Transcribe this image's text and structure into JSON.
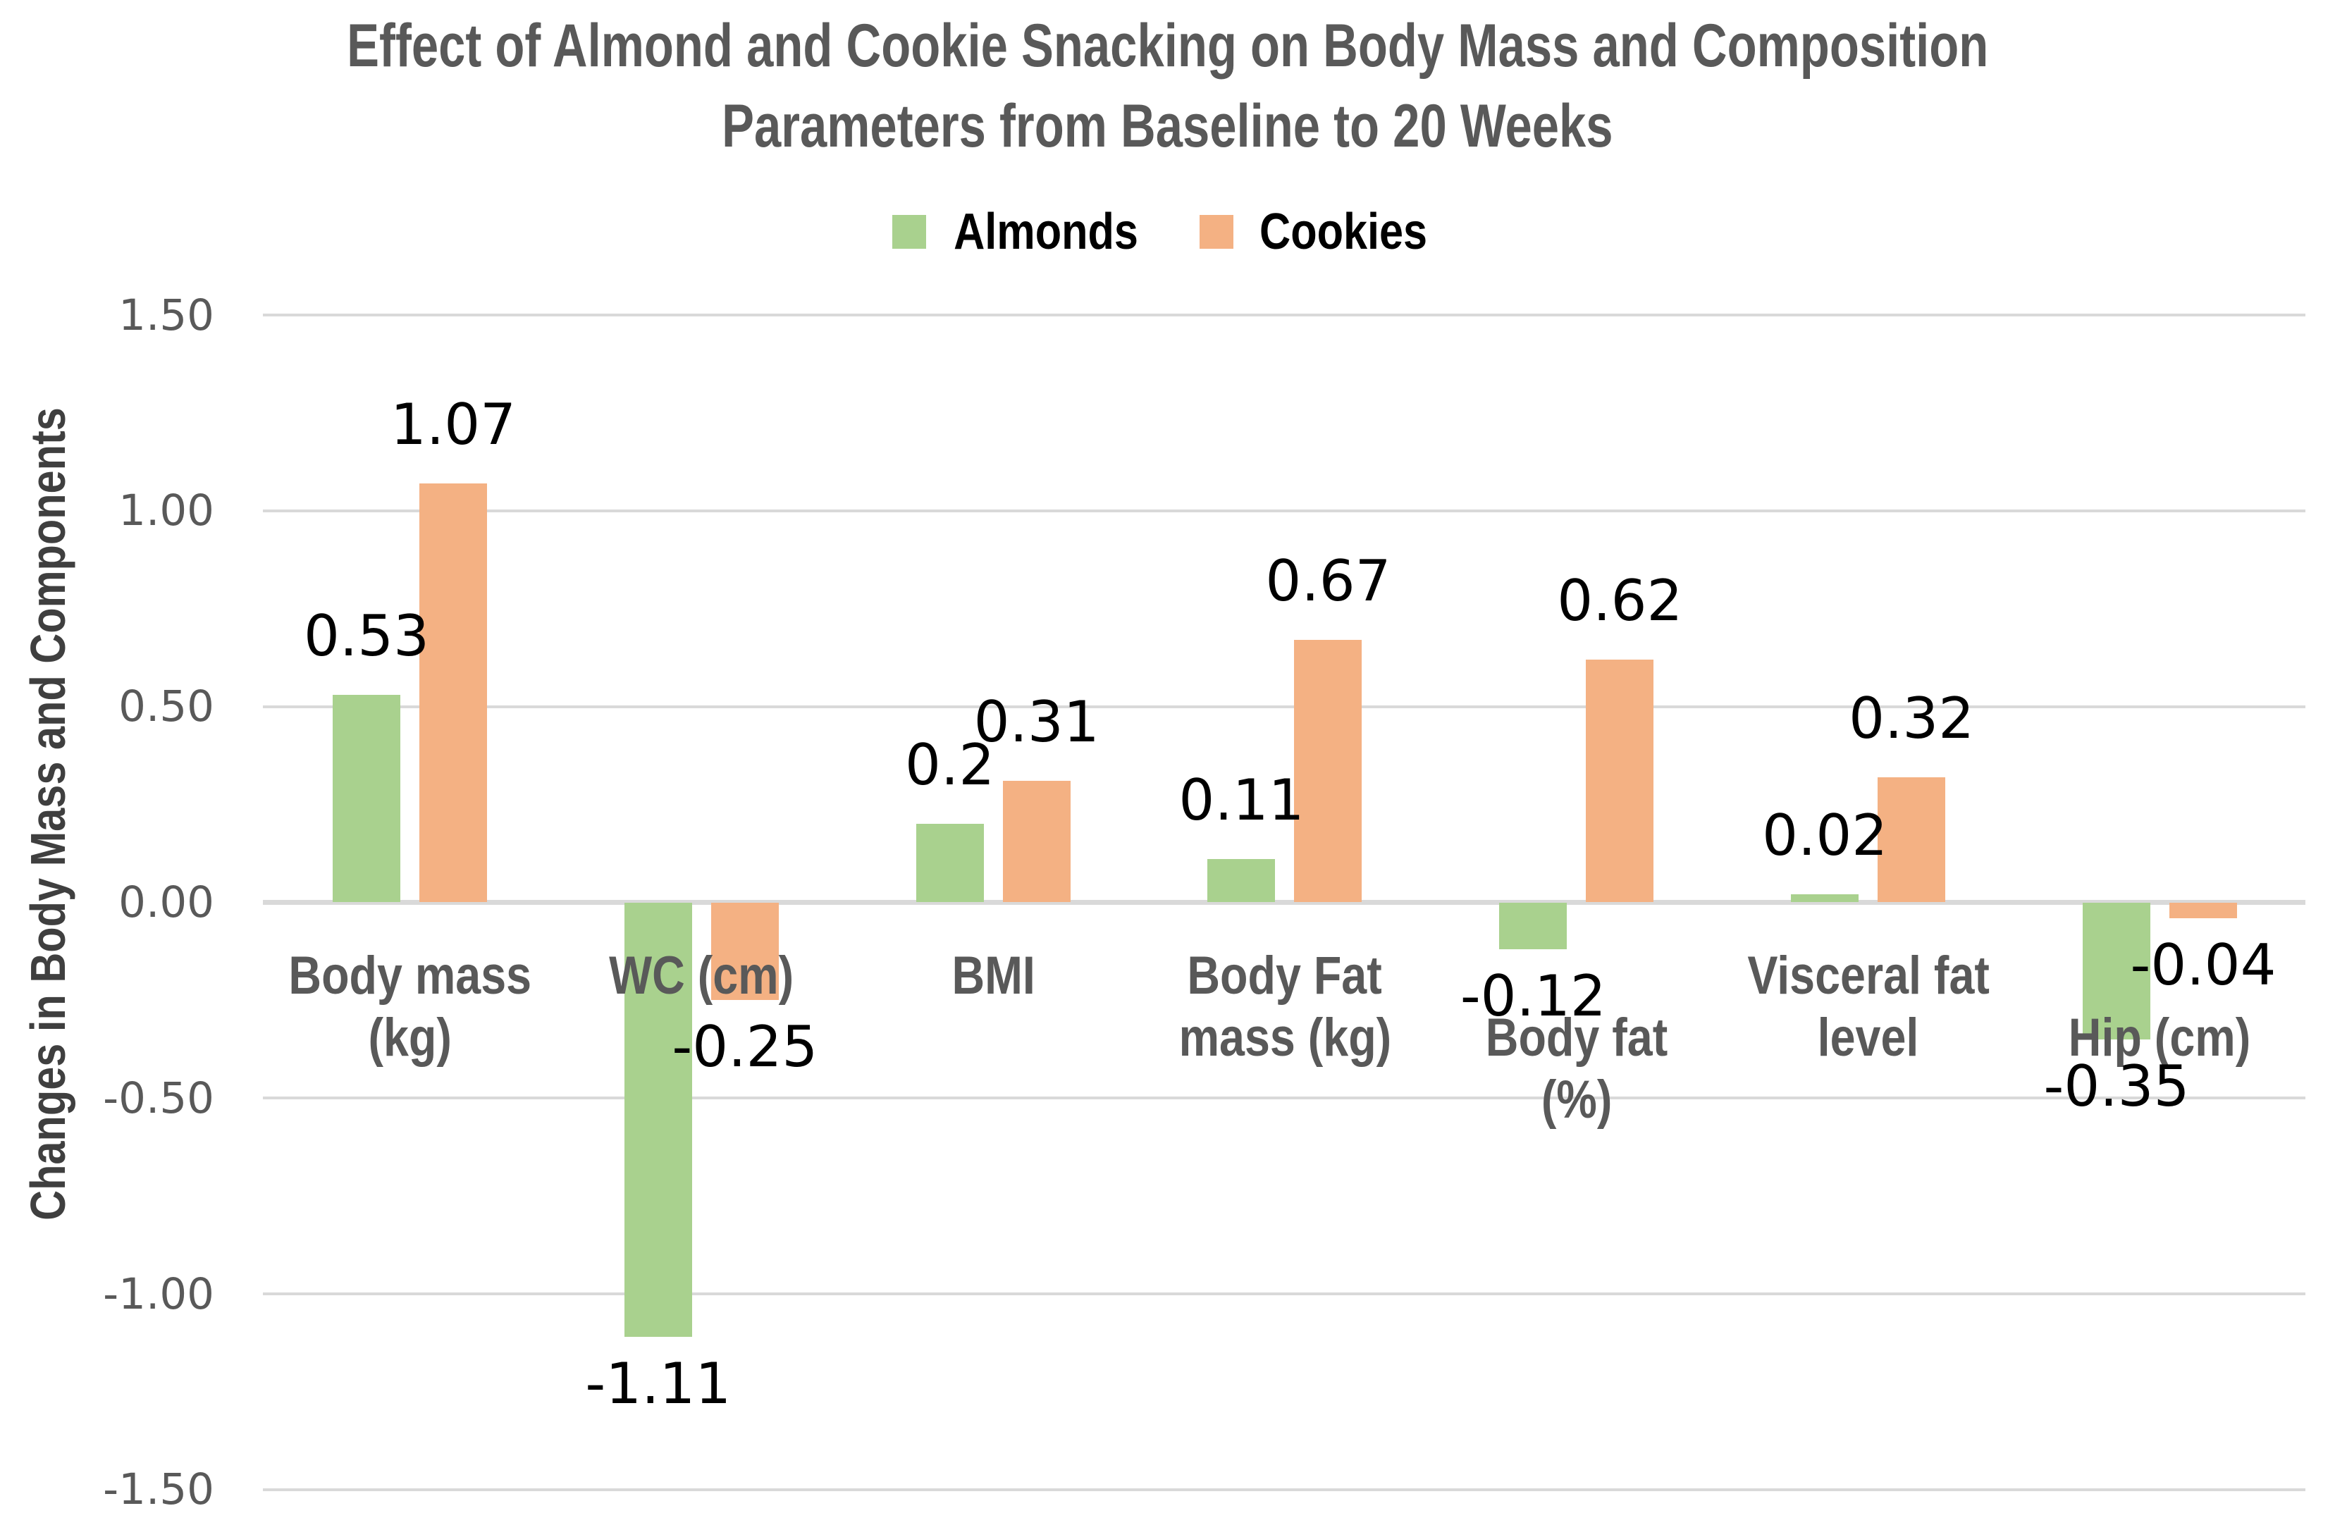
{
  "title": {
    "lines": [
      "Effect of Almond and Cookie Snacking on Body Mass and Composition",
      "Parameters from Baseline to 20 Weeks"
    ]
  },
  "legend": {
    "items": [
      {
        "label": "Almonds",
        "color": "#A9D18E"
      },
      {
        "label": "Cookies",
        "color": "#F4B183"
      }
    ]
  },
  "y_axis": {
    "title": "Changes in Body Mass and Components",
    "ticks": [
      {
        "label": "1.50",
        "value": 1.5
      },
      {
        "label": "1.00",
        "value": 1.0
      },
      {
        "label": "0.50",
        "value": 0.5
      },
      {
        "label": "0.00",
        "value": 0.0
      },
      {
        "label": "-0.50",
        "value": -0.5
      },
      {
        "label": "-1.00",
        "value": -1.0
      },
      {
        "label": "-1.50",
        "value": -1.5
      }
    ]
  },
  "chart_data": {
    "type": "bar",
    "title": "Effect of Almond and Cookie Snacking on Body Mass and Composition Parameters from Baseline to 20 Weeks",
    "ylabel": "Changes in Body Mass and Components",
    "xlabel": "",
    "ylim": [
      -1.5,
      1.5
    ],
    "ytick_step": 0.5,
    "grid": true,
    "legend_position": "top-center",
    "categories": [
      "Body mass (kg)",
      "WC (cm)",
      "BMI",
      "Body Fat mass (kg)",
      "Body fat (%)",
      "Visceral fat level",
      "Hip (cm)"
    ],
    "category_label_lines": [
      [
        "Body mass",
        "(kg)"
      ],
      [
        "WC (cm)"
      ],
      [
        "BMI"
      ],
      [
        "Body Fat",
        "mass (kg)"
      ],
      [
        "Body fat",
        "(%)"
      ],
      [
        "Visceral fat",
        "level"
      ],
      [
        "Hip (cm)"
      ]
    ],
    "category_label_row": [
      1,
      1,
      1,
      1,
      2,
      1,
      2
    ],
    "series": [
      {
        "name": "Almonds",
        "color": "#A9D18E",
        "values": [
          0.53,
          -1.11,
          0.2,
          0.11,
          -0.12,
          0.02,
          -0.35
        ],
        "data_labels": [
          "0.53",
          "-1.11",
          "0.2",
          "0.11",
          "-0.12",
          "0.02",
          "-0.35"
        ]
      },
      {
        "name": "Cookies",
        "color": "#F4B183",
        "values": [
          1.07,
          -0.25,
          0.31,
          0.67,
          0.62,
          0.32,
          -0.04
        ],
        "data_labels": [
          "1.07",
          "-0.25",
          "0.31",
          "0.67",
          "0.62",
          "0.32",
          "-0.04"
        ]
      }
    ],
    "colors": {
      "grid": "#d9d9d9",
      "title_text": "#595959",
      "tick_text": "#595959",
      "data_label_text": "#000000"
    }
  }
}
